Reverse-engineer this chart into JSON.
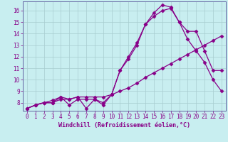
{
  "xlabel": "Windchill (Refroidissement éolien,°C)",
  "bg_color": "#c8eef0",
  "line_color": "#880088",
  "grid_color": "#a8ccd0",
  "line1_x": [
    0,
    1,
    2,
    3,
    4,
    5,
    6,
    7,
    8,
    9,
    10,
    11,
    12,
    13,
    14,
    15,
    16,
    17,
    18,
    19,
    20,
    21,
    22,
    23
  ],
  "line1_y": [
    7.5,
    7.8,
    8.0,
    8.0,
    8.5,
    7.8,
    8.3,
    8.3,
    8.3,
    8.0,
    8.7,
    10.8,
    12.0,
    13.2,
    14.8,
    15.8,
    16.5,
    16.3,
    15.0,
    14.2,
    14.2,
    12.5,
    10.8,
    10.8
  ],
  "line2_x": [
    0,
    1,
    2,
    3,
    4,
    5,
    6,
    7,
    8,
    9,
    10,
    11,
    12,
    13,
    14,
    15,
    16,
    17,
    18,
    19,
    20,
    21,
    22,
    23
  ],
  "line2_y": [
    7.5,
    7.8,
    8.0,
    8.2,
    8.5,
    8.3,
    8.5,
    7.5,
    8.3,
    7.8,
    8.7,
    10.8,
    11.8,
    13.0,
    14.8,
    15.5,
    16.0,
    16.2,
    15.0,
    13.5,
    12.5,
    11.5,
    10.0,
    9.0
  ],
  "line3_x": [
    0,
    1,
    2,
    3,
    4,
    5,
    6,
    7,
    8,
    9,
    10,
    11,
    12,
    13,
    14,
    15,
    16,
    17,
    18,
    19,
    20,
    21,
    22,
    23
  ],
  "line3_y": [
    7.5,
    7.8,
    8.0,
    8.0,
    8.3,
    8.3,
    8.5,
    8.5,
    8.5,
    8.5,
    8.7,
    9.0,
    9.3,
    9.7,
    10.2,
    10.6,
    11.0,
    11.4,
    11.8,
    12.2,
    12.6,
    13.0,
    13.4,
    13.8
  ],
  "xlim": [
    -0.5,
    23.5
  ],
  "ylim": [
    7.3,
    16.8
  ],
  "xticks": [
    0,
    1,
    2,
    3,
    4,
    5,
    6,
    7,
    8,
    9,
    10,
    11,
    12,
    13,
    14,
    15,
    16,
    17,
    18,
    19,
    20,
    21,
    22,
    23
  ],
  "yticks": [
    8,
    9,
    10,
    11,
    12,
    13,
    14,
    15,
    16
  ],
  "marker": "D",
  "markersize": 2.5,
  "linewidth": 0.9,
  "xlabel_fontsize": 6.0,
  "tick_fontsize": 5.5
}
